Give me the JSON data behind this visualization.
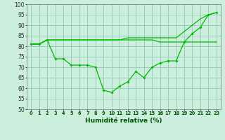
{
  "xlabel": "Humidité relative (%)",
  "x": [
    0,
    1,
    2,
    3,
    4,
    5,
    6,
    7,
    8,
    9,
    10,
    11,
    12,
    13,
    14,
    15,
    16,
    17,
    18,
    19,
    20,
    21,
    22,
    23
  ],
  "line_zigzag": [
    81,
    81,
    83,
    74,
    74,
    71,
    71,
    71,
    70,
    59,
    58,
    61,
    63,
    68,
    65,
    70,
    72,
    73,
    73,
    82,
    86,
    89,
    95,
    96
  ],
  "line_flat": [
    81,
    81,
    83,
    83,
    83,
    83,
    83,
    83,
    83,
    83,
    83,
    83,
    83,
    83,
    83,
    83,
    82,
    82,
    82,
    82,
    82,
    82,
    82,
    82
  ],
  "line_rising": [
    81,
    81,
    83,
    83,
    83,
    83,
    83,
    83,
    83,
    83,
    83,
    83,
    84,
    84,
    84,
    84,
    84,
    84,
    84,
    87,
    90,
    93,
    95,
    96
  ],
  "ylim": [
    50,
    100
  ],
  "yticks": [
    50,
    55,
    60,
    65,
    70,
    75,
    80,
    85,
    90,
    95,
    100
  ],
  "line_color": "#00bb00",
  "bg_color": "#cceedd",
  "grid_color": "#99ccbb"
}
